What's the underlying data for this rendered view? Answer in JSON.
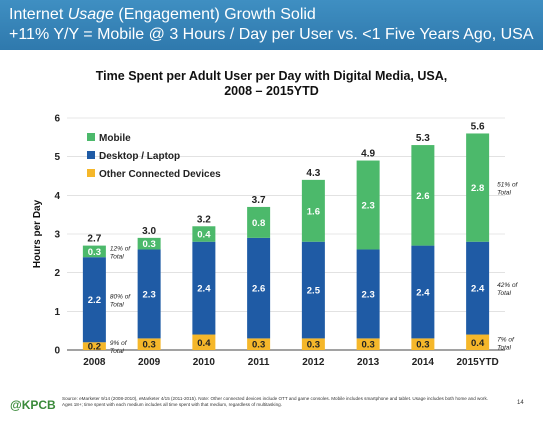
{
  "header": {
    "line1_prefix": "Internet ",
    "line1_italic": "Usage",
    "line1_suffix": " (Engagement) Growth Solid",
    "line2": "+11% Y/Y = Mobile @ 3 Hours / Day per User vs. <1  Five Years Ago, USA"
  },
  "chart_data": {
    "type": "bar",
    "stacked": true,
    "title_line1": "Time Spent per Adult User per Day with Digital Media, USA,",
    "title_line2": "2008 – 2015YTD",
    "ylabel": "Hours per Day",
    "xlabel": "",
    "ylim": [
      0,
      6
    ],
    "yticks": [
      "0",
      "1",
      "2",
      "3",
      "4",
      "5",
      "6"
    ],
    "grid": true,
    "legend_position": "top-left",
    "categories": [
      "2008",
      "2009",
      "2010",
      "2011",
      "2012",
      "2013",
      "2014",
      "2015YTD"
    ],
    "series": [
      {
        "name": "Other Connected Devices",
        "color": "#f5b72a",
        "values": [
          0.2,
          0.3,
          0.4,
          0.3,
          0.3,
          0.3,
          0.3,
          0.4
        ],
        "labels": [
          "0.2",
          "0.3",
          "0.4",
          "0.3",
          "0.3",
          "0.3",
          "0.3",
          "0.4"
        ]
      },
      {
        "name": "Desktop / Laptop",
        "color": "#1f5ba5",
        "values": [
          2.2,
          2.3,
          2.4,
          2.6,
          2.5,
          2.3,
          2.4,
          2.4
        ],
        "labels": [
          "2.2",
          "2.3",
          "2.4",
          "2.6",
          "2.5",
          "2.3",
          "2.4",
          "2.4"
        ]
      },
      {
        "name": "Mobile",
        "color": "#4cb96b",
        "values": [
          0.3,
          0.3,
          0.4,
          0.8,
          1.6,
          2.3,
          2.6,
          2.8
        ],
        "labels": [
          "0.3",
          "0.3",
          "0.4",
          "0.8",
          "1.6",
          "2.3",
          "2.6",
          "2.8"
        ]
      }
    ],
    "totals": [
      2.7,
      3.0,
      3.2,
      3.7,
      4.3,
      4.9,
      5.3,
      5.6
    ],
    "total_labels": [
      "2.7",
      "3.0",
      "3.2",
      "3.7",
      "4.3",
      "4.9",
      "5.3",
      "5.6"
    ],
    "legend_order": [
      "Mobile",
      "Desktop / Laptop",
      "Other Connected Devices"
    ],
    "annotations_2008": [
      {
        "line1": "12% of",
        "line2": "Total",
        "series": "Mobile"
      },
      {
        "line1": "80% of",
        "line2": "Total",
        "series": "Desktop / Laptop"
      },
      {
        "line1": "9% of",
        "line2": "Total",
        "series": "Other Connected Devices"
      }
    ],
    "annotations_2015": [
      {
        "line1": "51% of",
        "line2": "Total",
        "series": "Mobile"
      },
      {
        "line1": "42% of",
        "line2": "Total",
        "series": "Desktop / Laptop"
      },
      {
        "line1": "7% of",
        "line2": "Total",
        "series": "Other Connected Devices"
      }
    ]
  },
  "footer": {
    "logo": "@KPCB",
    "source": "Source: eMarketer 9/14 (2008-2010), eMarketer 4/15 (2011-2015). Note: Other connected devices include OTT and game consoles. Mobile includes smartphone and tablet. Usage includes both home and work. Ages 18+; time spent with each medium includes all time spent with that medium, regardless of multitasking.",
    "page": "14"
  }
}
